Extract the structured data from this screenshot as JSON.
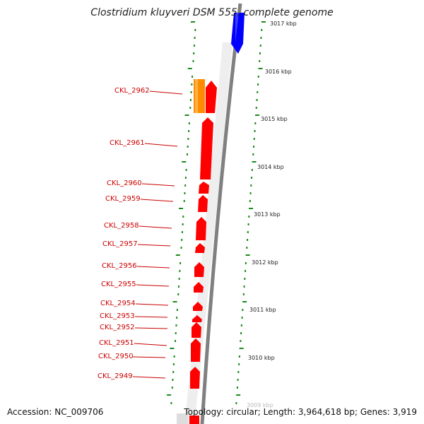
{
  "title": "Clostridium kluyveri DSM 555, complete genome",
  "accession": "Accession: NC_009706",
  "topology": "Topology: circular; Length: 3,964,618 bp; Genes: 3,919",
  "colors": {
    "gene_red": "#ff0000",
    "gene_orange": "#ff8c00",
    "gene_blue": "#0000ff",
    "backbone": "#808080",
    "ticks": "#1a8a1a",
    "labels": "#cc0000"
  },
  "scale_labels": [
    "3017 kbp",
    "3016 kbp",
    "3015 kbp",
    "3014 kbp",
    "3013 kbp",
    "3012 kbp",
    "3011 kbp",
    "3010 kbp",
    "3009 kbp"
  ],
  "genes": [
    {
      "name": "CKL_2962",
      "color": "orange"
    },
    {
      "name": "CKL_2961",
      "color": "red"
    },
    {
      "name": "CKL_2960",
      "color": "red"
    },
    {
      "name": "CKL_2959",
      "color": "red"
    },
    {
      "name": "CKL_2958",
      "color": "red"
    },
    {
      "name": "CKL_2957",
      "color": "red"
    },
    {
      "name": "CKL_2956",
      "color": "red"
    },
    {
      "name": "CKL_2955",
      "color": "red"
    },
    {
      "name": "CKL_2954",
      "color": "red"
    },
    {
      "name": "CKL_2953",
      "color": "red"
    },
    {
      "name": "CKL_2952",
      "color": "red"
    },
    {
      "name": "CKL_2951",
      "color": "red"
    },
    {
      "name": "CKL_2950",
      "color": "red"
    },
    {
      "name": "CKL_2949",
      "color": "red"
    }
  ]
}
